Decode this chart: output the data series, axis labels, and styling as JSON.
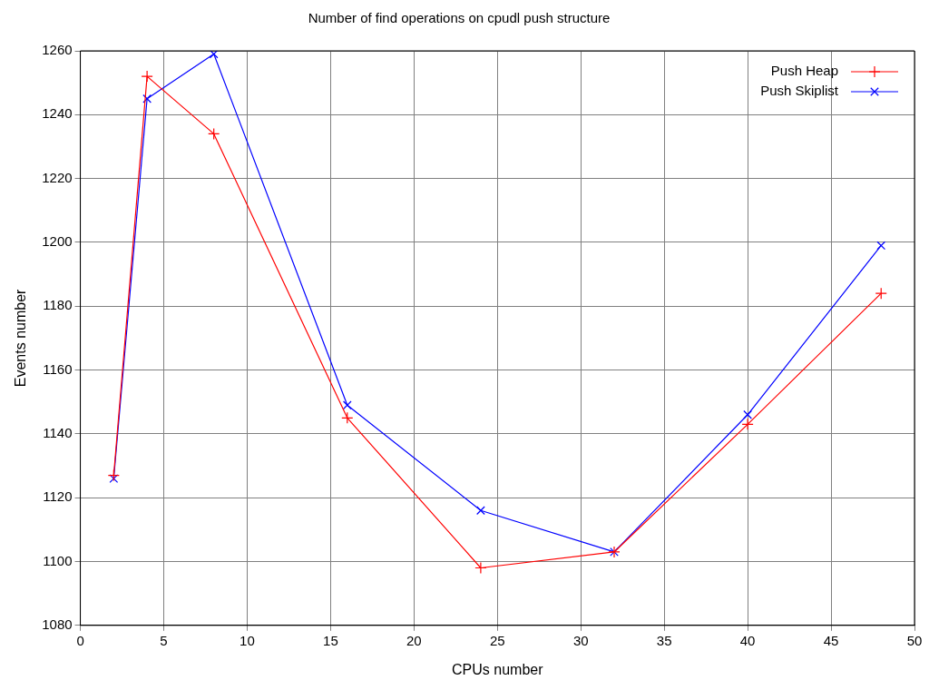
{
  "chart_data": {
    "type": "line",
    "title": "Number of find operations on cpudl push structure",
    "xlabel": "CPUs number",
    "ylabel": "Events number",
    "x": [
      2,
      4,
      8,
      16,
      24,
      32,
      40,
      48
    ],
    "series": [
      {
        "name": "Push Heap",
        "color": "#ff0000",
        "marker": "cross",
        "values": [
          1127,
          1252,
          1234,
          1145,
          1098,
          1103,
          1143,
          1184
        ]
      },
      {
        "name": "Push Skiplist",
        "color": "#0000ff",
        "marker": "x",
        "values": [
          1126,
          1245,
          1259,
          1149,
          1116,
          1103,
          1146,
          1199
        ]
      }
    ],
    "xlim": [
      0,
      50
    ],
    "xticks": [
      0,
      5,
      10,
      15,
      20,
      25,
      30,
      35,
      40,
      45,
      50
    ],
    "ylim": [
      1080,
      1260
    ],
    "yticks": [
      1080,
      1100,
      1120,
      1140,
      1160,
      1180,
      1200,
      1220,
      1240,
      1260
    ],
    "grid": true,
    "legend": "top right",
    "line_style": "solid"
  }
}
